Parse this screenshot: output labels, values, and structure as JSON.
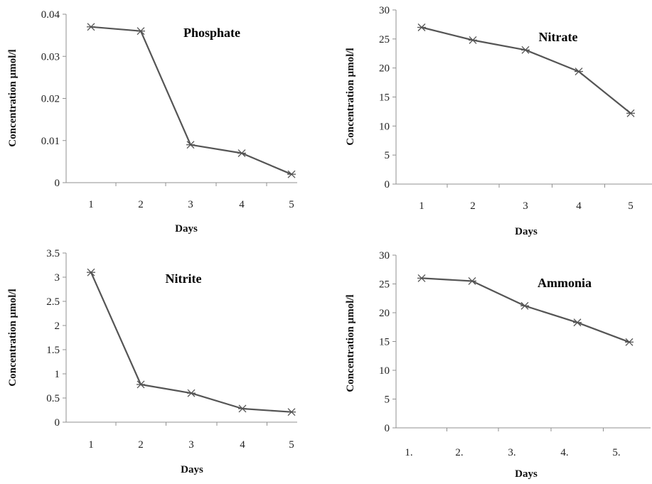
{
  "chart_data": [
    {
      "type": "line",
      "title": "Phosphate",
      "xlabel": "Days",
      "ylabel": "Concentration µmol/l",
      "categories": [
        "1",
        "2",
        "3",
        "4",
        "5"
      ],
      "values": [
        0.037,
        0.036,
        0.009,
        0.007,
        0.002
      ],
      "ylim": [
        0,
        0.04
      ],
      "yticks": [
        "0",
        "0.01",
        "0.02",
        "0.03",
        "0.04"
      ],
      "grid": false,
      "legend": "none"
    },
    {
      "type": "line",
      "title": "Nitrate",
      "xlabel": "Days",
      "ylabel": "Concentration µmol/l",
      "categories": [
        "1",
        "2",
        "3",
        "4",
        "5"
      ],
      "values": [
        27,
        24.8,
        23.1,
        19.4,
        12.2
      ],
      "ylim": [
        0,
        30
      ],
      "yticks": [
        "0",
        "5",
        "10",
        "15",
        "20",
        "25",
        "30"
      ],
      "grid": false,
      "legend": "none"
    },
    {
      "type": "line",
      "title": "Nitrite",
      "xlabel": "Days",
      "ylabel": "Concentration µmol/l",
      "categories": [
        "1",
        "2",
        "3",
        "4",
        "5"
      ],
      "values": [
        3.1,
        0.78,
        0.6,
        0.28,
        0.21
      ],
      "ylim": [
        0,
        3.5
      ],
      "yticks": [
        "0",
        "0.5",
        "1",
        "1.5",
        "2",
        "2.5",
        "3",
        "3.5"
      ],
      "grid": false,
      "legend": "none"
    },
    {
      "type": "line",
      "title": "Ammonia",
      "xlabel": "Days",
      "ylabel": "Concentration µmol/l",
      "categories": [
        "1.",
        "2.",
        "3.",
        "4.",
        "5."
      ],
      "values": [
        26,
        25.5,
        21.2,
        18.3,
        14.9
      ],
      "ylim": [
        0,
        30
      ],
      "yticks": [
        "0",
        "5",
        "10",
        "15",
        "20",
        "25",
        "30"
      ],
      "grid": false,
      "legend": "none"
    }
  ],
  "colors": {
    "line": "#555555",
    "marker": "#555555",
    "axis": "#909090"
  }
}
